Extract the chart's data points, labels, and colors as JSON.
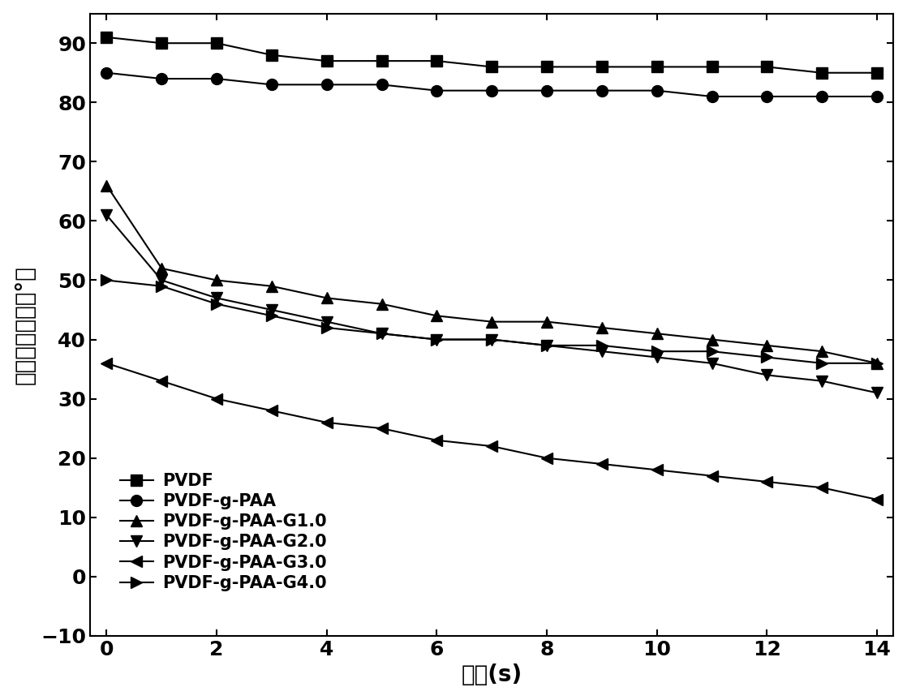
{
  "x": [
    0,
    1,
    2,
    3,
    4,
    5,
    6,
    7,
    8,
    9,
    10,
    11,
    12,
    13,
    14
  ],
  "series": [
    {
      "label": "PVDF",
      "marker": "s",
      "y": [
        91,
        90,
        90,
        88,
        87,
        87,
        87,
        86,
        86,
        86,
        86,
        86,
        86,
        85,
        85
      ]
    },
    {
      "label": "PVDF-g-PAA",
      "marker": "o",
      "y": [
        85,
        84,
        84,
        83,
        83,
        83,
        82,
        82,
        82,
        82,
        82,
        81,
        81,
        81,
        81
      ]
    },
    {
      "label": "PVDF-g-PAA-G1.0",
      "marker": "^",
      "y": [
        66,
        52,
        50,
        49,
        47,
        46,
        44,
        43,
        43,
        42,
        41,
        40,
        39,
        38,
        36
      ]
    },
    {
      "label": "PVDF-g-PAA-G2.0",
      "marker": "v",
      "y": [
        61,
        50,
        47,
        45,
        43,
        41,
        40,
        40,
        39,
        38,
        37,
        36,
        34,
        33,
        31
      ]
    },
    {
      "label": "PVDF-g-PAA-G3.0",
      "marker": "<",
      "y": [
        36,
        33,
        30,
        28,
        26,
        25,
        23,
        22,
        20,
        19,
        18,
        17,
        16,
        15,
        13
      ]
    },
    {
      "label": "PVDF-g-PAA-G4.0",
      "marker": ">",
      "y": [
        50,
        49,
        46,
        44,
        42,
        41,
        40,
        40,
        39,
        39,
        38,
        38,
        37,
        36,
        36
      ]
    }
  ],
  "xlabel": "时间(s)",
  "ylabel": "静态水接触角（°）",
  "xlim": [
    -0.3,
    14.3
  ],
  "ylim": [
    -10,
    95
  ],
  "xticks": [
    0,
    2,
    4,
    6,
    8,
    10,
    12,
    14
  ],
  "yticks": [
    -10,
    0,
    10,
    20,
    30,
    40,
    50,
    60,
    70,
    80,
    90
  ],
  "color": "#000000",
  "linewidth": 1.5,
  "markersize": 10,
  "label_fontsize": 20,
  "tick_fontsize": 18,
  "legend_fontsize": 15
}
